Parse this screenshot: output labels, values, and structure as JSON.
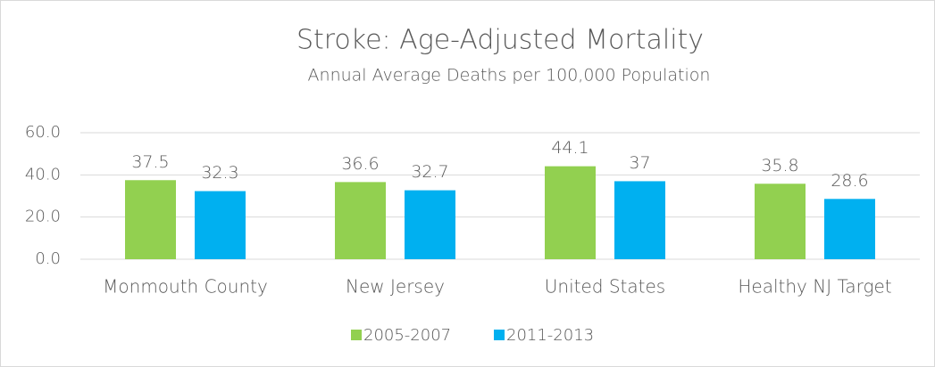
{
  "chart_data": {
    "type": "bar",
    "title": "Stroke: Age-Adjusted Mortality",
    "subtitle": "Annual Average Deaths per 100,000 Population",
    "categories": [
      "Monmouth County",
      "New Jersey",
      "United States",
      "Healthy NJ Target"
    ],
    "series": [
      {
        "name": "2005-2007",
        "color": "#92d050",
        "values": [
          37.5,
          36.6,
          44.1,
          35.8
        ]
      },
      {
        "name": "2011-2013",
        "color": "#00b0f0",
        "values": [
          32.3,
          32.7,
          37,
          28.6
        ]
      }
    ],
    "ylim": [
      0,
      60
    ],
    "yticks": [
      {
        "value": 0,
        "label": "0.0"
      },
      {
        "value": 20,
        "label": "20.0"
      },
      {
        "value": 40,
        "label": "40.0"
      },
      {
        "value": 60,
        "label": "60.0"
      }
    ],
    "grid": true,
    "legend": "bottom"
  }
}
